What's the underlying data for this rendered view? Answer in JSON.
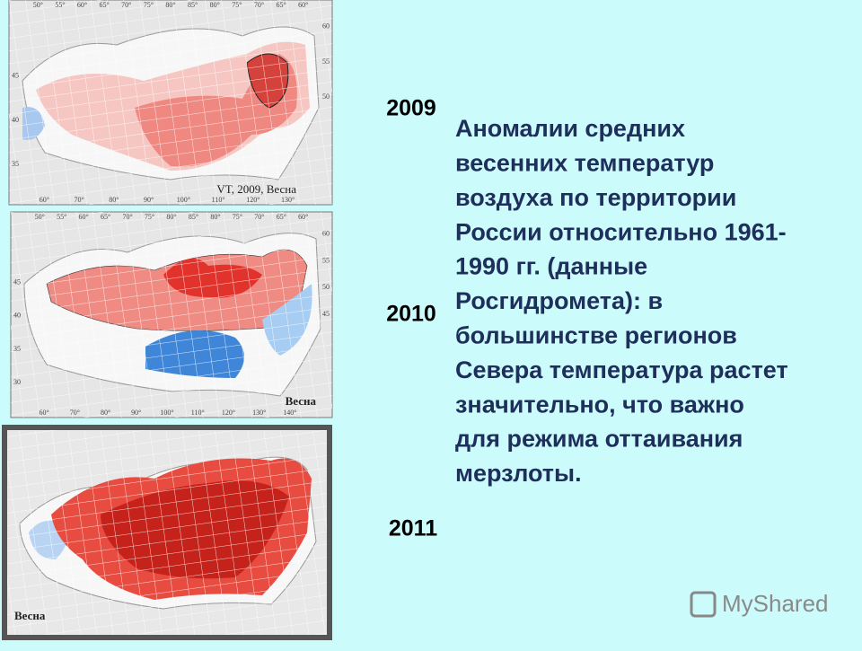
{
  "maps": [
    {
      "caption": "VT, 2009, Весна",
      "top_labels": [
        "50°",
        "55°",
        "60°",
        "65°",
        "70°",
        "75°",
        "80°",
        "85°",
        "80°",
        "75°",
        "70°",
        "65°",
        "60°"
      ],
      "bottom_labels": [
        "60°",
        "70°",
        "80°",
        "90°",
        "100°",
        "110°",
        "120°",
        "130°"
      ],
      "left_labels": [
        "45",
        "40",
        "35"
      ],
      "right_labels": [
        "60",
        "55",
        "50"
      ]
    },
    {
      "caption": "Весна",
      "top_labels": [
        "50°",
        "55°",
        "60°",
        "65°",
        "70°",
        "75°",
        "80°",
        "85°",
        "80°",
        "75°",
        "70°",
        "65°",
        "60°"
      ],
      "bottom_labels": [
        "60°",
        "70°",
        "80°",
        "90°",
        "100°",
        "110°",
        "120°",
        "130°",
        "140°"
      ],
      "left_labels": [
        "45",
        "40",
        "35",
        "30"
      ],
      "right_labels": [
        "60",
        "55",
        "50",
        "45"
      ]
    },
    {
      "caption": "Весна"
    }
  ],
  "years": [
    "2009",
    "2010",
    "2011"
  ],
  "description_lines": [
    "Аномалии средних",
    "весенних температур",
    "воздуха по территории",
    "России относительно 1961-",
    "1990 гг. (данные",
    "Росгидромета): в",
    "большинстве регионов",
    "Севера температура растет",
    "значительно, что важно",
    "для режима оттаивания",
    "мерзлоты."
  ],
  "watermark": "MyShared"
}
